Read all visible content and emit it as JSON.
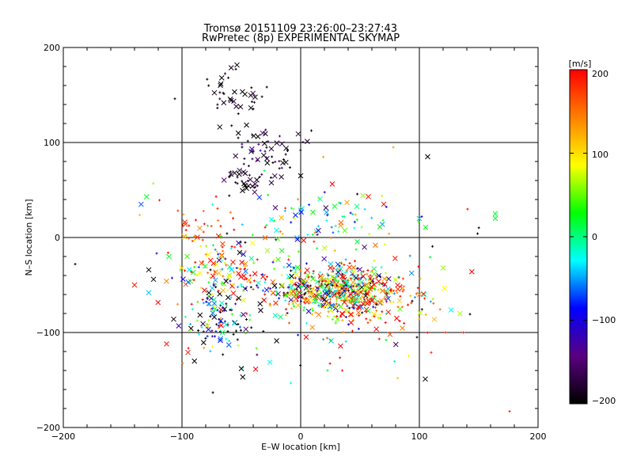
{
  "chart_data": {
    "type": "scatter",
    "title": "Tromsø 20151109 23:26:00–23:27:43",
    "subtitle": "RwPretec (8p) EXPERIMENTAL SKYMAP",
    "xlabel": "E–W location [km]",
    "ylabel": "N–S location [km]",
    "xlim": [
      -200,
      200
    ],
    "ylim": [
      -200,
      200
    ],
    "x_ticks": [
      "−200",
      "−100",
      "0",
      "100",
      "200"
    ],
    "y_ticks": [
      "−200",
      "−100",
      "0",
      "100",
      "200"
    ],
    "grid": true,
    "colorbar": {
      "unit_label": "[m/s]",
      "range": [
        -200,
        200
      ],
      "ticks": [
        "200",
        "100",
        "0",
        "−100",
        "−200"
      ],
      "colors": [
        "#000000",
        "#5a0080",
        "#0000ff",
        "#00ffff",
        "#00ff00",
        "#ffff00",
        "#ff8000",
        "#ff0000"
      ]
    },
    "markers": [
      "x",
      "+"
    ],
    "clusters": [
      {
        "cx": -55,
        "cy": 150,
        "sx": 12,
        "sy": 18,
        "n": 40,
        "vmean": -195,
        "vsd": 15
      },
      {
        "cx": -30,
        "cy": 90,
        "sx": 15,
        "sy": 12,
        "n": 60,
        "vmean": -180,
        "vsd": 30
      },
      {
        "cx": -45,
        "cy": 60,
        "sx": 10,
        "sy": 6,
        "n": 30,
        "vmean": -190,
        "vsd": 20
      },
      {
        "cx": 20,
        "cy": 20,
        "sx": 25,
        "sy": 15,
        "n": 60,
        "vmean": 10,
        "vsd": 80
      },
      {
        "cx": -80,
        "cy": 5,
        "sx": 15,
        "sy": 15,
        "n": 40,
        "vmean": 150,
        "vsd": 60
      },
      {
        "cx": 30,
        "cy": -55,
        "sx": 25,
        "sy": 12,
        "n": 500,
        "vmean": 50,
        "vsd": 150
      },
      {
        "cx": -60,
        "cy": -40,
        "sx": 20,
        "sy": 15,
        "n": 120,
        "vmean": 100,
        "vsd": 150
      },
      {
        "cx": -70,
        "cy": -85,
        "sx": 15,
        "sy": 15,
        "n": 100,
        "vmean": -100,
        "vsd": 150
      },
      {
        "cx": 60,
        "cy": -70,
        "sx": 25,
        "sy": 15,
        "n": 120,
        "vmean": 150,
        "vsd": 80
      },
      {
        "cx": 0,
        "cy": -40,
        "sx": 60,
        "sy": 50,
        "n": 150,
        "vmean": 0,
        "vsd": 180
      }
    ],
    "outliers": [
      {
        "x": -106,
        "y": 146,
        "v": -200,
        "m": "+"
      },
      {
        "x": -190,
        "y": -28,
        "v": -200,
        "m": "+"
      },
      {
        "x": -140,
        "y": -50,
        "v": 190,
        "m": "x"
      },
      {
        "x": -124,
        "y": -44,
        "v": -200,
        "m": "x"
      },
      {
        "x": -128,
        "y": -58,
        "v": -40,
        "m": "x"
      },
      {
        "x": -113,
        "y": -112,
        "v": 190,
        "m": "x"
      },
      {
        "x": -107,
        "y": -86,
        "v": -200,
        "m": "x"
      },
      {
        "x": -128,
        "y": -34,
        "v": -200,
        "m": "x"
      },
      {
        "x": 105,
        "y": -149,
        "v": -200,
        "m": "x"
      },
      {
        "x": 107,
        "y": 85,
        "v": -200,
        "m": "x"
      },
      {
        "x": 100,
        "y": 20,
        "v": -40,
        "m": "x"
      },
      {
        "x": 102,
        "y": 22,
        "v": -100,
        "m": "+"
      },
      {
        "x": 164,
        "y": 25,
        "v": 20,
        "m": "x"
      },
      {
        "x": 164,
        "y": 20,
        "v": 20,
        "m": "x"
      },
      {
        "x": 120,
        "y": -32,
        "v": 60,
        "m": "x"
      },
      {
        "x": 122,
        "y": -100,
        "v": 190,
        "m": "+"
      },
      {
        "x": 137,
        "y": -100,
        "v": 190,
        "m": "+"
      },
      {
        "x": 176,
        "y": -183,
        "v": 190,
        "m": "+"
      },
      {
        "x": 110,
        "y": -121,
        "v": 190,
        "m": "+"
      },
      {
        "x": 98,
        "y": -105,
        "v": -200,
        "m": "+"
      },
      {
        "x": 100,
        "y": -60,
        "v": 140,
        "m": "x"
      },
      {
        "x": 70,
        "y": 35,
        "v": 190,
        "m": "x"
      },
      {
        "x": 57,
        "y": 43,
        "v": 190,
        "m": "x"
      },
      {
        "x": 35,
        "y": -140,
        "v": 190,
        "m": "+"
      },
      {
        "x": -95,
        "y": -121,
        "v": 190,
        "m": "x"
      },
      {
        "x": -111,
        "y": -20,
        "v": 20,
        "m": "x"
      },
      {
        "x": -50,
        "y": -138,
        "v": -200,
        "m": "x"
      },
      {
        "x": 78,
        "y": 95,
        "v": 130,
        "m": "+"
      },
      {
        "x": 0,
        "y": 65,
        "v": -200,
        "m": "x"
      },
      {
        "x": 35,
        "y": -80,
        "v": 190,
        "m": "x"
      }
    ]
  }
}
